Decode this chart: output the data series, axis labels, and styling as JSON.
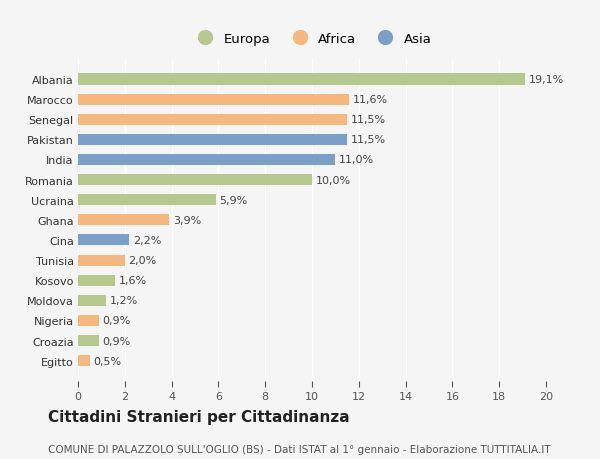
{
  "countries": [
    "Egitto",
    "Croazia",
    "Nigeria",
    "Moldova",
    "Kosovo",
    "Tunisia",
    "Cina",
    "Ghana",
    "Ucraina",
    "Romania",
    "India",
    "Pakistan",
    "Senegal",
    "Marocco",
    "Albania"
  ],
  "values": [
    0.5,
    0.9,
    0.9,
    1.2,
    1.6,
    2.0,
    2.2,
    3.9,
    5.9,
    10.0,
    11.0,
    11.5,
    11.5,
    11.6,
    19.1
  ],
  "labels": [
    "0,5%",
    "0,9%",
    "0,9%",
    "1,2%",
    "1,6%",
    "2,0%",
    "2,2%",
    "3,9%",
    "5,9%",
    "10,0%",
    "11,0%",
    "11,5%",
    "11,5%",
    "11,6%",
    "19,1%"
  ],
  "continent": [
    "Africa",
    "Europa",
    "Africa",
    "Europa",
    "Europa",
    "Africa",
    "Asia",
    "Africa",
    "Europa",
    "Europa",
    "Asia",
    "Asia",
    "Africa",
    "Africa",
    "Europa"
  ],
  "colors": {
    "Europa": "#b5c98e",
    "Africa": "#f5b97f",
    "Asia": "#7b9fc7"
  },
  "title": "Cittadini Stranieri per Cittadinanza",
  "subtitle": "COMUNE DI PALAZZOLO SULL'OGLIO (BS) - Dati ISTAT al 1° gennaio - Elaborazione TUTTITALIA.IT",
  "xlim": [
    0,
    20
  ],
  "xticks": [
    0,
    2,
    4,
    6,
    8,
    10,
    12,
    14,
    16,
    18,
    20
  ],
  "background_color": "#f5f5f5",
  "bar_height": 0.55,
  "label_fontsize": 8,
  "title_fontsize": 11,
  "subtitle_fontsize": 7.5,
  "tick_fontsize": 8,
  "legend_fontsize": 9.5
}
